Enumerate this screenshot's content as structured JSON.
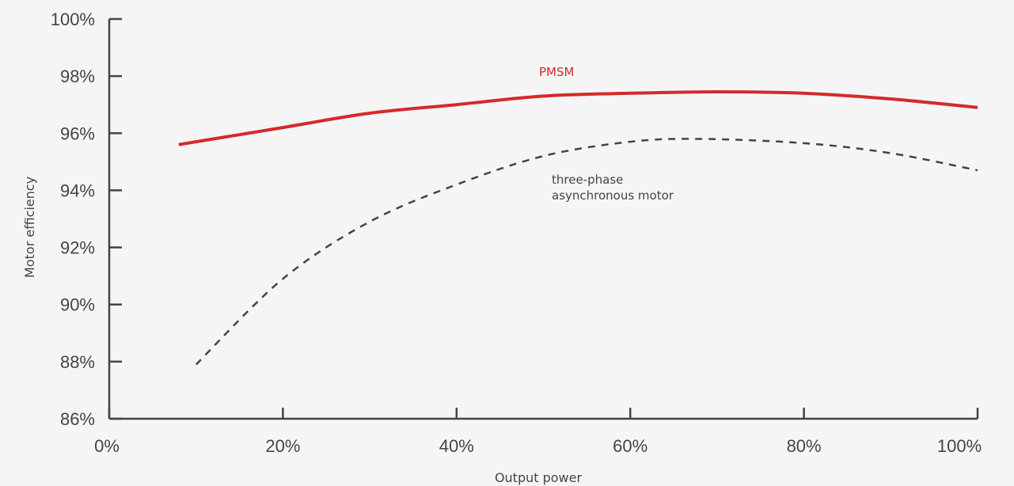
{
  "chart_data": {
    "type": "line",
    "xlabel": "Output power",
    "ylabel": "Motor efficiency",
    "xlim": [
      0,
      100
    ],
    "ylim": [
      86,
      100
    ],
    "x_ticks": [
      0,
      20,
      40,
      60,
      80,
      100
    ],
    "y_ticks": [
      86,
      88,
      90,
      92,
      94,
      96,
      98,
      100
    ],
    "x_tick_labels": [
      "0%",
      "20%",
      "40%",
      "60%",
      "80%",
      "100%"
    ],
    "y_tick_labels": [
      "86%",
      "88%",
      "90%",
      "92%",
      "94%",
      "96%",
      "98%",
      "100%"
    ],
    "grid": false,
    "series": [
      {
        "name": "PMSM",
        "color": "#d42a2a",
        "style": "solid",
        "x": [
          8,
          20,
          30,
          40,
          50,
          60,
          70,
          80,
          90,
          100
        ],
        "y": [
          95.6,
          96.2,
          96.7,
          97.0,
          97.3,
          97.4,
          97.45,
          97.4,
          97.2,
          96.9
        ]
      },
      {
        "name": "three-phase asynchronous motor",
        "name_lines": [
          "three-phase",
          "asynchronous motor"
        ],
        "color": "#444444",
        "style": "dashed",
        "x": [
          10,
          20,
          30,
          40,
          50,
          60,
          68,
          80,
          90,
          100
        ],
        "y": [
          87.9,
          90.9,
          92.9,
          94.2,
          95.2,
          95.7,
          95.8,
          95.65,
          95.3,
          94.7
        ]
      }
    ]
  }
}
